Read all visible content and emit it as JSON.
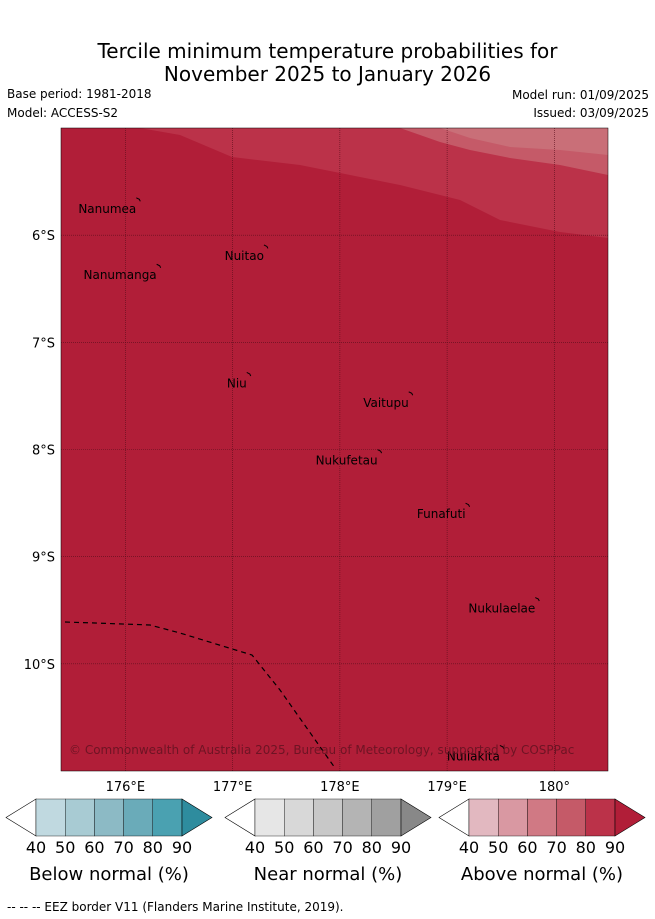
{
  "title_line1": "Tercile minimum temperature probabilities for",
  "title_line2": "November 2025 to January 2026",
  "base_period": "Base period: 1981-2018",
  "model": "Model: ACCESS-S2",
  "model_run": "Model run: 01/09/2025",
  "issued": "Issued: 03/09/2025",
  "copyright": "© Commonwealth of Australia 2025, Bureau of Meteorology, supported by COSPPac",
  "eez_note": "--  --  -- EEZ border V11 (Flanders Marine Institute, 2019).",
  "map": {
    "lon_range": [
      175.4,
      180.5
    ],
    "lat_range": [
      -11.0,
      -5.0
    ],
    "lon_ticks": [
      {
        "value": 176,
        "label": "176°E"
      },
      {
        "value": 177,
        "label": "177°E"
      },
      {
        "value": 178,
        "label": "178°E"
      },
      {
        "value": 179,
        "label": "179°E"
      },
      {
        "value": 180,
        "label": "180°"
      }
    ],
    "lat_ticks": [
      {
        "value": -6,
        "label": "6°S"
      },
      {
        "value": -7,
        "label": "7°S"
      },
      {
        "value": -8,
        "label": "8°S"
      },
      {
        "value": -9,
        "label": "9°S"
      },
      {
        "value": -10,
        "label": "10°S"
      }
    ],
    "base_fill_percent": 90,
    "base_fill_category": "Above normal",
    "places": [
      {
        "name": "Nanumea",
        "lon": 176.13,
        "lat": -5.67
      },
      {
        "name": "Nuitao",
        "lon": 177.32,
        "lat": -6.11
      },
      {
        "name": "Nanumanga",
        "lon": 176.32,
        "lat": -6.29
      },
      {
        "name": "Niu",
        "lon": 177.16,
        "lat": -7.3
      },
      {
        "name": "Vaitupu",
        "lon": 178.67,
        "lat": -7.48
      },
      {
        "name": "Nukufetau",
        "lon": 178.38,
        "lat": -8.02
      },
      {
        "name": "Funafuti",
        "lon": 179.2,
        "lat": -8.52
      },
      {
        "name": "Nukulaelae",
        "lon": 179.85,
        "lat": -9.4
      },
      {
        "name": "Nuilakita",
        "lon": 179.52,
        "lat": -10.78
      }
    ]
  },
  "colorbars": [
    {
      "name": "below",
      "title": "Below normal (%)",
      "labels": [
        "40",
        "50",
        "60",
        "70",
        "80",
        "90"
      ],
      "colors": [
        "#ffffff",
        "#c0d9e0",
        "#a8cbd3",
        "#8cbac5",
        "#6aabb9",
        "#4aa1b1",
        "#2e8c9e"
      ]
    },
    {
      "name": "near",
      "title": "Near normal (%)",
      "labels": [
        "40",
        "50",
        "60",
        "70",
        "80",
        "90"
      ],
      "colors": [
        "#ffffff",
        "#e6e6e6",
        "#d8d8d8",
        "#c8c8c8",
        "#b4b4b4",
        "#a0a0a0",
        "#888888"
      ]
    },
    {
      "name": "above",
      "title": "Above normal (%)",
      "labels": [
        "40",
        "50",
        "60",
        "70",
        "80",
        "90"
      ],
      "colors": [
        "#ffffff",
        "#e2b8c0",
        "#d998a2",
        "#d07984",
        "#c55a68",
        "#bb3249",
        "#b11e38"
      ]
    }
  ]
}
